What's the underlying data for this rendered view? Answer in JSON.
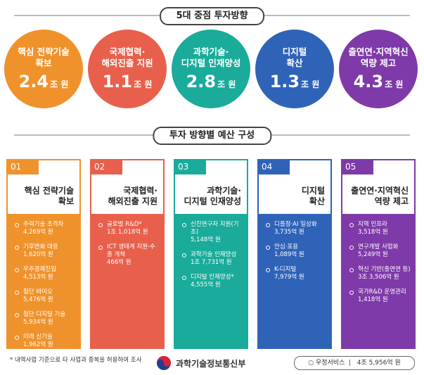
{
  "banner1": "5대 중점 투자방향",
  "banner2": "투자 방향별 예산 구성",
  "circles": [
    {
      "lines": [
        "핵심 전략기술",
        "확보"
      ],
      "amount": "2.4",
      "unit": "조 원",
      "color": "#f0922b"
    },
    {
      "lines": [
        "국제협력·",
        "해외진출 지원"
      ],
      "amount": "1.1",
      "unit": "조 원",
      "color": "#e8604c"
    },
    {
      "lines": [
        "과학기술·",
        "디지털 인재양성"
      ],
      "amount": "2.8",
      "unit": "조 원",
      "color": "#1aab9a"
    },
    {
      "lines": [
        "디지털",
        "확산"
      ],
      "amount": "1.3",
      "unit": "조 원",
      "color": "#2f63b8"
    },
    {
      "lines": [
        "출연연·지역혁신",
        "역량 제고"
      ],
      "amount": "4.3",
      "unit": "조 원",
      "color": "#7e3aa8"
    }
  ],
  "cards": [
    {
      "num": "01",
      "lines": [
        "핵심 전략기술",
        "확보"
      ],
      "color": "#f0922b",
      "items": [
        {
          "name": "주력기술 초격차",
          "amount": "4,269억 원"
        },
        {
          "name": "기후변화 대응",
          "amount": "1,620억 원"
        },
        {
          "name": "우주경제진입",
          "amount": "4,513억 원"
        },
        {
          "name": "첨단 바이오",
          "amount": "5,476억 원"
        },
        {
          "name": "첨단 디지털 기술",
          "amount": "5,934억 원"
        },
        {
          "name": "미래 신기술",
          "amount": "1,962억 원"
        }
      ]
    },
    {
      "num": "02",
      "lines": [
        "국제협력·",
        "해외진출 지원"
      ],
      "color": "#e8604c",
      "items": [
        {
          "name": "글로벌 R&D*",
          "amount": "1조 1,018억 원"
        },
        {
          "name": "ICT 생태계 지원·수출 개척",
          "amount": "466억 원"
        }
      ]
    },
    {
      "num": "03",
      "lines": [
        "과학기술·",
        "디지털 인재양성"
      ],
      "color": "#1aab9a",
      "items": [
        {
          "name": "신진연구자 지원(기초)",
          "amount": "5,148억 원"
        },
        {
          "name": "과학기술 인재양성",
          "amount": "1조 7,731억 원"
        },
        {
          "name": "디지털 인재양성*",
          "amount": "4,555억 원"
        }
      ]
    },
    {
      "num": "04",
      "lines": [
        "디지털",
        "확산"
      ],
      "color": "#2f63b8",
      "items": [
        {
          "name": "디플정·AI 일상화",
          "amount": "3,735억 원"
        },
        {
          "name": "안심·포용",
          "amount": "1,089억 원"
        },
        {
          "name": "K-디지털",
          "amount": "7,979억 원"
        }
      ]
    },
    {
      "num": "05",
      "lines": [
        "출연연·지역혁신",
        "역량 제고"
      ],
      "color": "#7e3aa8",
      "items": [
        {
          "name": "지역 인프라",
          "amount": "3,518억 원"
        },
        {
          "name": "연구개발 사업화",
          "amount": "5,249억 원"
        },
        {
          "name": "혁신 기반(출연연 등)",
          "amount": "3조 3,506억 원"
        },
        {
          "name": "국가R&D 운영관리",
          "amount": "1,418억 원"
        }
      ]
    }
  ],
  "footnote": "* 내역사업 기준으로 타 사업과 중복을 허용하여 조사",
  "ministry": "과학기술정보통신부",
  "postal": {
    "name": "우정서비스",
    "amount": "4조 5,956억 원"
  }
}
